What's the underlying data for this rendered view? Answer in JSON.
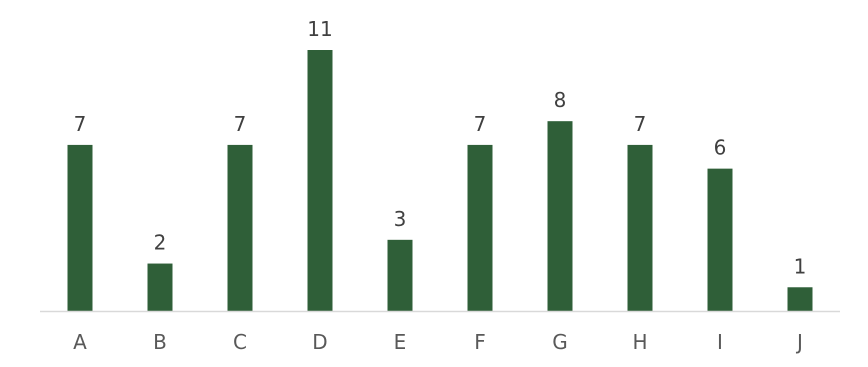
{
  "chart_data": {
    "type": "bar",
    "categories": [
      "A",
      "B",
      "C",
      "D",
      "E",
      "F",
      "G",
      "H",
      "I",
      "J"
    ],
    "values": [
      7,
      2,
      7,
      11,
      3,
      7,
      8,
      7,
      6,
      1
    ],
    "title": "",
    "xlabel": "",
    "ylabel": "",
    "ylim": [
      0,
      11
    ],
    "grid": false,
    "legend": "none",
    "data_labels": true,
    "bar_color": "#2f5f38",
    "axis_color": "#d9d9d9",
    "label_color": "#404040",
    "tick_color": "#595959"
  }
}
